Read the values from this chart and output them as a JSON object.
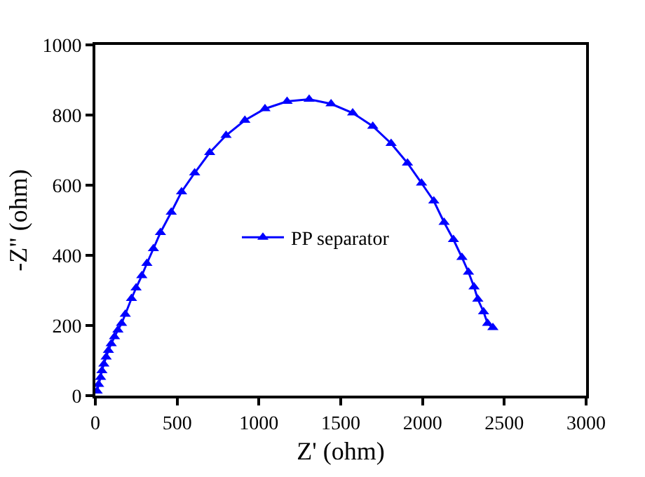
{
  "chart_data": {
    "type": "line",
    "xlabel": "Z' (ohm)",
    "ylabel": "-Z\" (ohm)",
    "xlim": [
      0,
      3000
    ],
    "xticks": [
      0,
      500,
      1000,
      1500,
      2000,
      2500,
      3000
    ],
    "ylim": [
      0,
      1000
    ],
    "yticks": [
      0,
      200,
      400,
      600,
      800,
      1000
    ],
    "legend": "center",
    "marker": "triangle",
    "line_style": "solid",
    "series": [
      {
        "name": "PP separator",
        "color": "#0000ff",
        "x": [
          11,
          20,
          32,
          40,
          52,
          66,
          80,
          97,
          117,
          138,
          160,
          183,
          221,
          249,
          284,
          315,
          355,
          398,
          464,
          527,
          607,
          699,
          799,
          914,
          1037,
          1172,
          1307,
          1441,
          1573,
          1696,
          1808,
          1908,
          1994,
          2069,
          2132,
          2189,
          2241,
          2281,
          2315,
          2338,
          2373,
          2398,
          2430
        ],
        "values": [
          13,
          32,
          52,
          71,
          90,
          110,
          129,
          148,
          168,
          187,
          206,
          232,
          277,
          307,
          342,
          377,
          419,
          465,
          523,
          581,
          635,
          693,
          742,
          785,
          818,
          839,
          845,
          832,
          806,
          768,
          719,
          663,
          606,
          555,
          494,
          445,
          394,
          352,
          310,
          275,
          239,
          206,
          194
        ]
      }
    ]
  }
}
